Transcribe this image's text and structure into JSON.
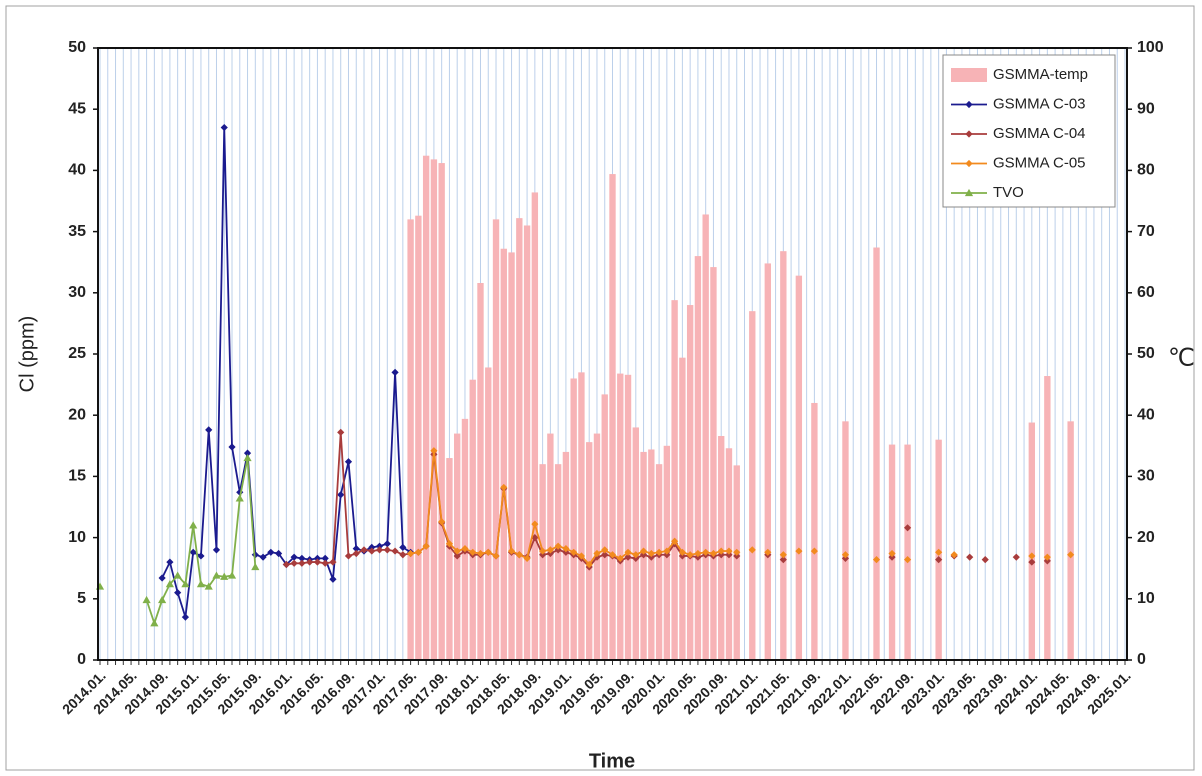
{
  "chart_data": {
    "type": "bar-line",
    "xlabel": "Time",
    "ylabel": "Cl (ppm)",
    "y2label": "℃",
    "categories": [
      "2014.01.",
      "2014.05.",
      "2014.09.",
      "2015.01.",
      "2015.05.",
      "2015.09.",
      "2016.01.",
      "2016.05.",
      "2016.09.",
      "2017.01.",
      "2017.05.",
      "2017.09.",
      "2018.01.",
      "2018.05.",
      "2018.09.",
      "2019.01.",
      "2019.05.",
      "2019.09.",
      "2020.01.",
      "2020.05.",
      "2020.09.",
      "2021.01.",
      "2021.05.",
      "2021.09.",
      "2022.01.",
      "2022.05.",
      "2022.09.",
      "2023.01.",
      "2023.05.",
      "2023.09.",
      "2024.01.",
      "2024.05.",
      "2024.09.",
      "2025.01."
    ],
    "ylim": [
      0,
      50
    ],
    "yticks": [
      0,
      5,
      10,
      15,
      20,
      25,
      30,
      35,
      40,
      45,
      50
    ],
    "y2lim": [
      0,
      100
    ],
    "y2ticks": [
      0,
      10,
      20,
      30,
      40,
      50,
      60,
      70,
      80,
      90,
      100
    ],
    "grid": true,
    "legend": "top-right",
    "series": [
      {
        "name": "GSMMA-temp",
        "type": "bar",
        "axis": "y2",
        "color": "#f7b3b6",
        "x": [
          "2017.05.",
          "2017.06.",
          "2017.07.",
          "2017.08.",
          "2017.09.",
          "2017.10.",
          "2017.11.",
          "2017.12.",
          "2018.01.",
          "2018.02.",
          "2018.03.",
          "2018.04.",
          "2018.05.",
          "2018.06.",
          "2018.07.",
          "2018.08.",
          "2018.09.",
          "2018.10.",
          "2018.11.",
          "2018.12.",
          "2019.01.",
          "2019.02.",
          "2019.03.",
          "2019.04.",
          "2019.05.",
          "2019.06.",
          "2019.07.",
          "2019.08.",
          "2019.09.",
          "2019.10.",
          "2019.11.",
          "2019.12.",
          "2020.01.",
          "2020.02.",
          "2020.03.",
          "2020.04.",
          "2020.05.",
          "2020.06.",
          "2020.07.",
          "2020.08.",
          "2020.09.",
          "2020.10.",
          "2020.11.",
          "2021.01.",
          "2021.03.",
          "2021.05.",
          "2021.07.",
          "2021.09.",
          "2022.01.",
          "2022.05.",
          "2022.07.",
          "2022.09.",
          "2023.01.",
          "2024.01.",
          "2024.03.",
          "2024.06."
        ],
        "values": [
          72,
          72.6,
          82.4,
          81.8,
          81.2,
          33,
          37,
          39.4,
          45.8,
          61.6,
          47.8,
          72,
          67.2,
          66.6,
          72.2,
          71,
          76.4,
          32,
          37,
          32,
          34,
          46,
          47,
          35.6,
          37,
          43.4,
          79.4,
          46.8,
          46.6,
          38,
          34,
          34.4,
          32,
          35,
          58.8,
          49.4,
          58,
          66,
          72.8,
          64.2,
          36.6,
          34.6,
          31.8,
          57,
          64.8,
          66.8,
          62.8,
          42,
          39,
          67.4,
          35.2,
          35.2,
          36,
          38.8,
          46.4,
          39
        ]
      },
      {
        "name": "GSMMA C-03",
        "type": "line",
        "marker": "diamond",
        "color": "#1b1b8f",
        "x": [
          "2014.09.",
          "2014.10.",
          "2014.11.",
          "2014.12.",
          "2015.01.",
          "2015.02.",
          "2015.03.",
          "2015.04.",
          "2015.05.",
          "2015.06.",
          "2015.07.",
          "2015.08.",
          "2015.09.",
          "2015.10.",
          "2015.11.",
          "2015.12.",
          "2016.01.",
          "2016.02.",
          "2016.03.",
          "2016.04.",
          "2016.05.",
          "2016.06.",
          "2016.07.",
          "2016.08.",
          "2016.09.",
          "2016.10.",
          "2016.11.",
          "2016.12.",
          "2017.01.",
          "2017.02.",
          "2017.03.",
          "2017.04.",
          "2017.05."
        ],
        "values": [
          6.7,
          8.0,
          5.5,
          3.5,
          8.8,
          8.5,
          18.8,
          9.0,
          43.5,
          17.4,
          13.7,
          16.9,
          8.6,
          8.4,
          8.8,
          8.7,
          7.8,
          8.4,
          8.3,
          8.2,
          8.3,
          8.3,
          6.6,
          13.5,
          16.2,
          9.1,
          8.9,
          9.2,
          9.3,
          9.5,
          23.5,
          9.2,
          8.8
        ]
      },
      {
        "name": "GSMMA C-04",
        "type": "line",
        "marker": "diamond",
        "color": "#a83c3c",
        "x": [
          "2016.01.",
          "2016.02.",
          "2016.03.",
          "2016.04.",
          "2016.05.",
          "2016.06.",
          "2016.07.",
          "2016.08.",
          "2016.09.",
          "2016.10.",
          "2016.11.",
          "2016.12.",
          "2017.01.",
          "2017.02.",
          "2017.03.",
          "2017.04.",
          "2017.05.",
          "2017.06.",
          "2017.07.",
          "2017.08.",
          "2017.09.",
          "2017.10.",
          "2017.11.",
          "2017.12.",
          "2018.01.",
          "2018.02.",
          "2018.03.",
          "2018.04.",
          "2018.05.",
          "2018.06.",
          "2018.07.",
          "2018.08.",
          "2018.09.",
          "2018.10.",
          "2018.11.",
          "2018.12.",
          "2019.01.",
          "2019.02.",
          "2019.03.",
          "2019.04.",
          "2019.05.",
          "2019.06.",
          "2019.07.",
          "2019.08.",
          "2019.09.",
          "2019.10.",
          "2019.11.",
          "2019.12.",
          "2020.01.",
          "2020.02.",
          "2020.03.",
          "2020.04.",
          "2020.05.",
          "2020.06.",
          "2020.07.",
          "2020.08.",
          "2020.09.",
          "2020.10.",
          null,
          "2020.11.",
          null,
          "2021.03.",
          null,
          "2021.05.",
          null,
          "2022.01.",
          null,
          "2022.07.",
          null,
          "2022.09.",
          null,
          "2023.01.",
          null,
          "2023.03.",
          null,
          "2023.05.",
          null,
          "2023.07.",
          null,
          "2023.11.",
          null,
          "2024.01.",
          null,
          "2024.03."
        ],
        "values": [
          7.8,
          7.9,
          7.9,
          8.0,
          8.0,
          7.9,
          8.0,
          18.6,
          8.5,
          8.7,
          9.0,
          8.9,
          9.0,
          9.0,
          8.9,
          8.6,
          8.7,
          8.8,
          9.3,
          16.8,
          11.2,
          9.3,
          8.5,
          8.9,
          8.6,
          8.6,
          8.8,
          8.5,
          14.0,
          8.8,
          8.6,
          8.4,
          10.0,
          8.6,
          8.7,
          9.0,
          8.8,
          8.6,
          8.3,
          7.6,
          8.4,
          8.6,
          8.5,
          8.1,
          8.4,
          8.3,
          8.6,
          8.4,
          8.6,
          8.6,
          9.5,
          8.5,
          8.5,
          8.4,
          8.6,
          8.5,
          8.6,
          8.6,
          null,
          8.5,
          null,
          8.6,
          null,
          8.2,
          null,
          8.3,
          null,
          8.4,
          null,
          10.8,
          null,
          8.2,
          null,
          8.5,
          null,
          8.4,
          null,
          8.2,
          null,
          8.4,
          null,
          8.0,
          null,
          8.1
        ]
      },
      {
        "name": "GSMMA C-05",
        "type": "line",
        "marker": "diamond",
        "color": "#f28a1e",
        "x": [
          "2017.05.",
          "2017.06.",
          "2017.07.",
          "2017.08.",
          "2017.09.",
          "2017.10.",
          "2017.11.",
          "2017.12.",
          "2018.01.",
          "2018.02.",
          "2018.03.",
          "2018.04.",
          "2018.05.",
          "2018.06.",
          "2018.07.",
          "2018.08.",
          "2018.09.",
          "2018.10.",
          "2018.11.",
          "2018.12.",
          "2019.01.",
          "2019.02.",
          "2019.03.",
          "2019.04.",
          "2019.05.",
          "2019.06.",
          "2019.07.",
          "2019.08.",
          "2019.09.",
          "2019.10.",
          "2019.11.",
          "2019.12.",
          "2020.01.",
          "2020.02.",
          "2020.03.",
          "2020.04.",
          "2020.05.",
          "2020.06.",
          "2020.07.",
          "2020.08.",
          "2020.09.",
          "2020.10.",
          null,
          "2020.11.",
          null,
          "2021.01.",
          null,
          "2021.03.",
          null,
          "2021.05.",
          null,
          "2021.07.",
          null,
          "2021.09.",
          null,
          "2022.01.",
          null,
          "2022.05.",
          null,
          "2022.07.",
          null,
          "2022.09.",
          null,
          "2023.01.",
          null,
          "2023.03.",
          null,
          "2024.01.",
          null,
          "2024.03.",
          null,
          "2024.06."
        ],
        "values": [
          8.7,
          8.8,
          9.3,
          17.1,
          11.3,
          9.5,
          8.9,
          9.1,
          8.8,
          8.7,
          8.8,
          8.5,
          14.1,
          8.9,
          8.6,
          8.3,
          11.1,
          8.9,
          9.0,
          9.3,
          9.1,
          8.8,
          8.5,
          7.8,
          8.7,
          9.0,
          8.6,
          8.3,
          8.8,
          8.6,
          8.9,
          8.7,
          8.8,
          8.9,
          9.7,
          8.8,
          8.6,
          8.7,
          8.8,
          8.7,
          8.9,
          8.9,
          null,
          8.8,
          null,
          9.0,
          null,
          8.8,
          null,
          8.6,
          null,
          8.9,
          null,
          8.9,
          null,
          8.6,
          null,
          8.2,
          null,
          8.7,
          null,
          8.2,
          null,
          8.8,
          null,
          8.6,
          null,
          8.5,
          null,
          8.4,
          null,
          8.6
        ]
      },
      {
        "name": "TVO",
        "type": "line",
        "marker": "triangle",
        "color": "#80b04a",
        "x": [
          "2014.01.",
          null,
          "2014.07.",
          "2014.08.",
          "2014.09.",
          "2014.10.",
          "2014.11.",
          "2014.12.",
          "2015.01.",
          "2015.02.",
          "2015.03.",
          "2015.04.",
          "2015.05.",
          "2015.06.",
          "2015.07.",
          "2015.08.",
          "2015.09."
        ],
        "values": [
          6.0,
          null,
          4.9,
          3.0,
          4.9,
          6.2,
          6.9,
          6.2,
          11.0,
          6.2,
          6.0,
          6.9,
          6.8,
          6.9,
          13.2,
          16.5,
          7.6
        ]
      }
    ]
  }
}
